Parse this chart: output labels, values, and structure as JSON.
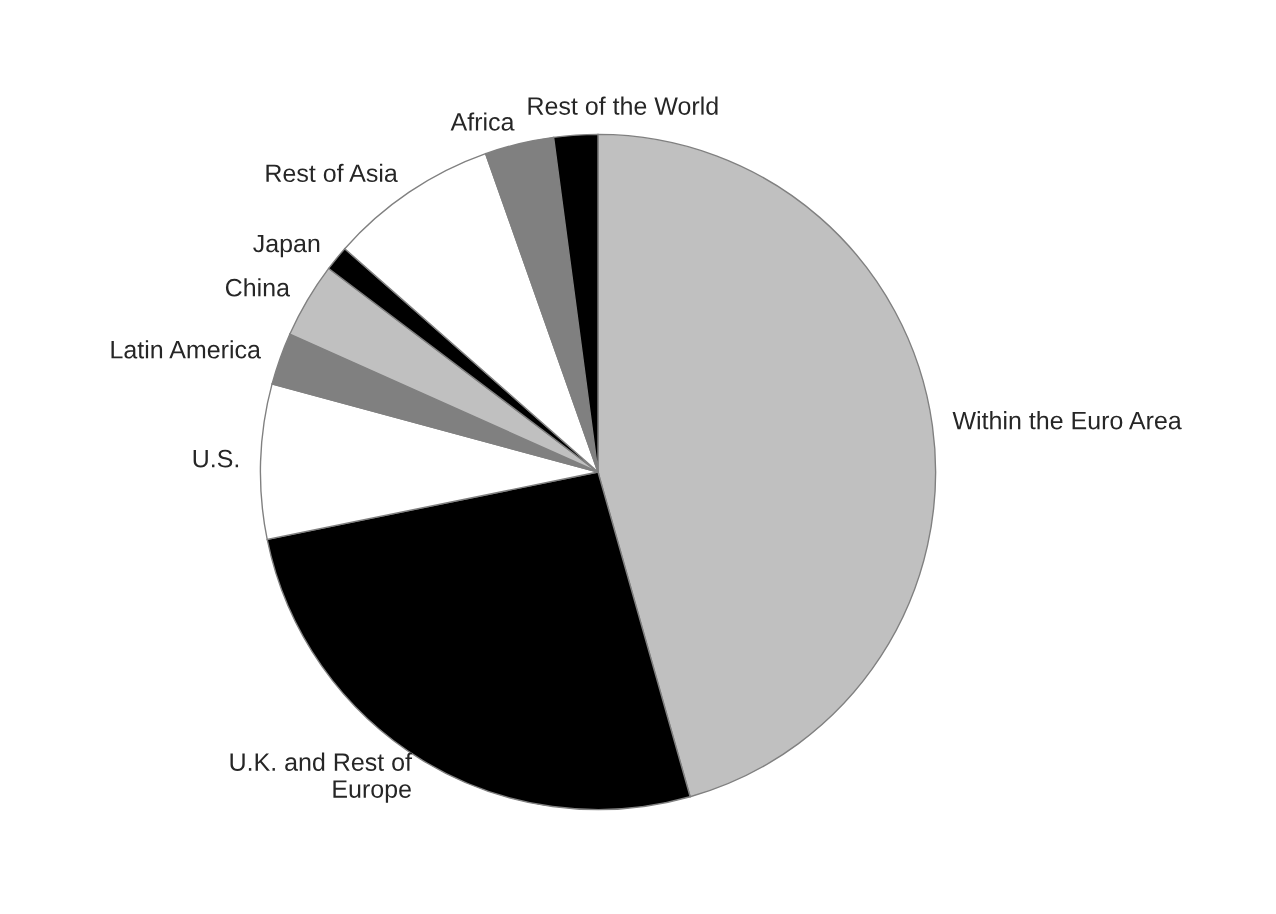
{
  "chart_data": {
    "type": "pie",
    "categories": [
      "Within the Euro Area",
      "U.K. and Rest of\nEurope",
      "U.S.",
      "Latin America",
      "China",
      "Japan",
      "Rest of Asia",
      "Africa",
      "Rest of the World"
    ],
    "values": [
      45.6,
      26.2,
      7.4,
      2.5,
      3.6,
      1.2,
      8.1,
      3.3,
      2.1
    ],
    "colors": [
      "#c0c0c0",
      "#000000",
      "#ffffff",
      "#808080",
      "#c0c0c0",
      "#000000",
      "#ffffff",
      "#808080",
      "#000000"
    ]
  }
}
